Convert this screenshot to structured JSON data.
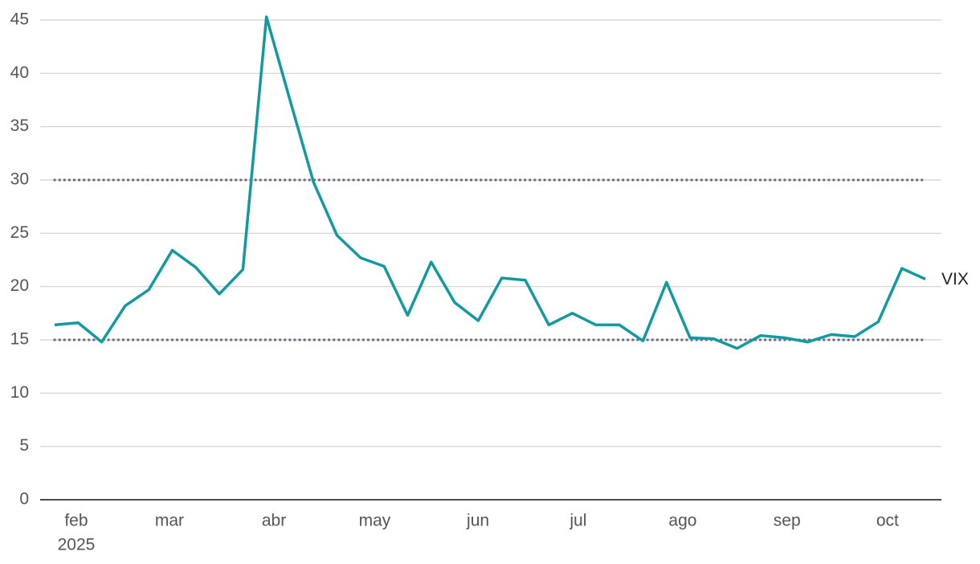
{
  "chart_data": {
    "type": "line",
    "categories": [
      null,
      null,
      null,
      null,
      null,
      null,
      null,
      null,
      null,
      null,
      null,
      null,
      null,
      null,
      null,
      null,
      null,
      null,
      null,
      null,
      null,
      null,
      null,
      null,
      null,
      null,
      null,
      null,
      null,
      null,
      null,
      null,
      null,
      null,
      null,
      null,
      null,
      null
    ],
    "series": [
      {
        "name": "VIX",
        "color": "#13999f",
        "values": [
          16.4,
          16.6,
          14.8,
          18.2,
          19.7,
          23.4,
          21.8,
          19.3,
          21.6,
          45.3,
          37.5,
          29.8,
          24.8,
          22.7,
          21.9,
          17.3,
          22.3,
          18.5,
          16.8,
          20.8,
          20.6,
          16.4,
          17.5,
          16.4,
          16.4,
          14.9,
          20.4,
          15.2,
          15.1,
          14.2,
          15.4,
          15.2,
          14.8,
          15.5,
          15.3,
          16.7,
          21.7,
          20.7
        ]
      }
    ],
    "xticks": [
      {
        "value": 0.92,
        "label": "feb"
      },
      {
        "value": 4.88,
        "label": "mar"
      },
      {
        "value": 9.32,
        "label": "abr"
      },
      {
        "value": 13.6,
        "label": "may"
      },
      {
        "value": 17.99,
        "label": "jun"
      },
      {
        "value": 22.25,
        "label": "jul"
      },
      {
        "value": 26.69,
        "label": "ago"
      },
      {
        "value": 31.12,
        "label": "sep"
      },
      {
        "value": 35.39,
        "label": "oct"
      }
    ],
    "year_label": "2025",
    "ylim": [
      0,
      45
    ],
    "yticks": [
      0,
      5,
      10,
      15,
      20,
      25,
      30,
      35,
      40,
      45
    ],
    "grid": true,
    "reference_lines": [
      15,
      30
    ],
    "reference_color": "#6b6b80"
  }
}
